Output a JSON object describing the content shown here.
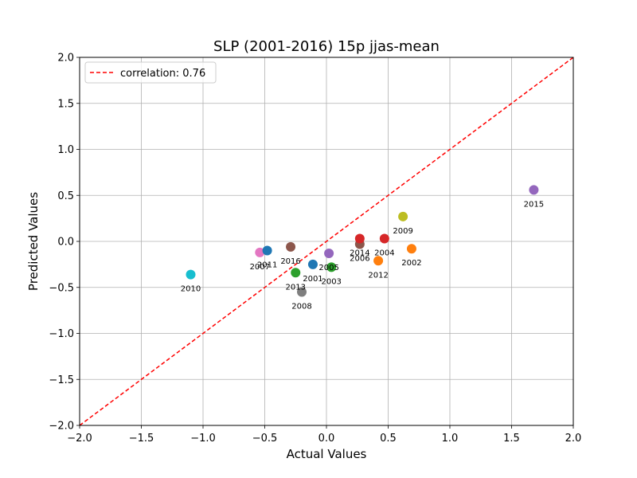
{
  "chart_data": {
    "type": "scatter",
    "title": "SLP (2001-2016) 15p jjas-mean",
    "xlabel": "Actual Values",
    "ylabel": "Predicted Values",
    "xlim": [
      -2.0,
      2.0
    ],
    "ylim": [
      -2.0,
      2.0
    ],
    "xticks": [
      "−2.0",
      "−1.5",
      "−1.0",
      "−0.5",
      "0.0",
      "0.5",
      "1.0",
      "1.5",
      "2.0"
    ],
    "yticks": [
      "−2.0",
      "−1.5",
      "−1.0",
      "−0.5",
      "0.0",
      "0.5",
      "1.0",
      "1.5",
      "2.0"
    ],
    "grid": true,
    "legend": {
      "placement": "top-left",
      "entries": [
        {
          "label": "correlation: 0.76",
          "color": "#ff0000",
          "style": "dashed"
        }
      ]
    },
    "reference_line": {
      "from": [
        -2.0,
        -2.0
      ],
      "to": [
        2.0,
        2.0
      ],
      "color": "#ff0000",
      "style": "dashed"
    },
    "points": [
      {
        "label": "2001",
        "x": -0.11,
        "y": -0.25,
        "color": "#1f77b4"
      },
      {
        "label": "2002",
        "x": 0.69,
        "y": -0.08,
        "color": "#ff7f0e"
      },
      {
        "label": "2003",
        "x": 0.04,
        "y": -0.28,
        "color": "#2ca02c"
      },
      {
        "label": "2004",
        "x": 0.47,
        "y": 0.03,
        "color": "#d62728"
      },
      {
        "label": "2005",
        "x": 0.02,
        "y": -0.13,
        "color": "#9467bd"
      },
      {
        "label": "2006",
        "x": 0.27,
        "y": -0.03,
        "color": "#8c564b"
      },
      {
        "label": "2007",
        "x": -0.54,
        "y": -0.12,
        "color": "#e377c2"
      },
      {
        "label": "2008",
        "x": -0.2,
        "y": -0.55,
        "color": "#7f7f7f"
      },
      {
        "label": "2009",
        "x": 0.62,
        "y": 0.27,
        "color": "#bcbd22"
      },
      {
        "label": "2010",
        "x": -1.1,
        "y": -0.36,
        "color": "#17becf"
      },
      {
        "label": "2011",
        "x": -0.48,
        "y": -0.1,
        "color": "#1f77b4"
      },
      {
        "label": "2012",
        "x": 0.42,
        "y": -0.21,
        "color": "#ff7f0e"
      },
      {
        "label": "2013",
        "x": -0.25,
        "y": -0.34,
        "color": "#2ca02c"
      },
      {
        "label": "2014",
        "x": 0.27,
        "y": 0.03,
        "color": "#d62728"
      },
      {
        "label": "2015",
        "x": 1.68,
        "y": 0.56,
        "color": "#9467bd"
      },
      {
        "label": "2016",
        "x": -0.29,
        "y": -0.06,
        "color": "#8c564b"
      }
    ]
  }
}
